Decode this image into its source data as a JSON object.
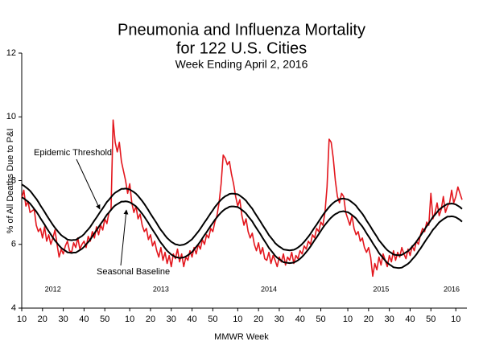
{
  "chart_data": {
    "type": "line",
    "title": [
      "Pneumonia and Influenza Mortality",
      "for 122 U.S. Cities"
    ],
    "subtitle": "Week Ending April 2, 2016",
    "y_label": "% of All Deaths Due to P&I",
    "x_label": "MMWR Week",
    "year_labels": [
      "2012",
      "2013",
      "2014",
      "2015",
      "2016"
    ],
    "ylim": [
      4,
      12
    ],
    "yticks": [
      4,
      6,
      8,
      10,
      12
    ],
    "grid": false,
    "categories": [
      "10",
      null,
      null,
      null,
      null,
      null,
      null,
      null,
      null,
      null,
      "20",
      null,
      null,
      null,
      null,
      null,
      null,
      null,
      null,
      null,
      "30",
      null,
      null,
      null,
      null,
      null,
      null,
      null,
      null,
      null,
      "40",
      null,
      null,
      null,
      null,
      null,
      null,
      null,
      null,
      null,
      "50",
      null,
      null,
      null,
      null,
      null,
      null,
      null,
      null,
      null,
      null,
      null,
      "10",
      null,
      null,
      null,
      null,
      null,
      null,
      null,
      null,
      null,
      "20",
      null,
      null,
      null,
      null,
      null,
      null,
      null,
      null,
      null,
      "30",
      null,
      null,
      null,
      null,
      null,
      null,
      null,
      null,
      null,
      "40",
      null,
      null,
      null,
      null,
      null,
      null,
      null,
      null,
      null,
      "50",
      null,
      null,
      null,
      null,
      null,
      null,
      null,
      null,
      null,
      null,
      null,
      "10",
      null,
      null,
      null,
      null,
      null,
      null,
      null,
      null,
      null,
      "20",
      null,
      null,
      null,
      null,
      null,
      null,
      null,
      null,
      null,
      "30",
      null,
      null,
      null,
      null,
      null,
      null,
      null,
      null,
      null,
      "40",
      null,
      null,
      null,
      null,
      null,
      null,
      null,
      null,
      null,
      "50",
      null,
      null,
      null,
      null,
      null,
      null,
      null,
      null,
      null,
      null,
      null,
      null,
      "10",
      null,
      null,
      null,
      null,
      null,
      null,
      null,
      null,
      null,
      "20",
      null,
      null,
      null,
      null,
      null,
      null,
      null,
      null,
      null,
      "30",
      null,
      null,
      null,
      null,
      null,
      null,
      null,
      null,
      null,
      "40",
      null,
      null,
      null,
      null,
      null,
      null,
      null,
      null,
      null,
      "50",
      null,
      null,
      null,
      null,
      null,
      null,
      null,
      null,
      null,
      null,
      null,
      "10",
      null,
      null,
      null
    ],
    "series": [
      {
        "color": "#e3161d",
        "values": [
          7.45,
          7.7,
          7.2,
          7.35,
          7.0,
          7.05,
          7.1,
          6.6,
          6.4,
          6.5,
          6.2,
          6.55,
          6.1,
          6.3,
          6.0,
          6.2,
          6.45,
          6.0,
          5.6,
          5.85,
          5.7,
          5.95,
          6.1,
          5.8,
          5.75,
          6.05,
          5.9,
          6.2,
          5.85,
          6.0,
          6.1,
          5.9,
          6.25,
          6.1,
          6.4,
          6.2,
          6.55,
          6.3,
          6.6,
          6.45,
          6.8,
          6.65,
          7.0,
          7.1,
          9.9,
          9.2,
          8.9,
          9.2,
          8.6,
          8.3,
          8.0,
          7.6,
          7.9,
          7.3,
          7.0,
          7.2,
          6.8,
          6.95,
          6.6,
          6.4,
          6.5,
          6.15,
          6.3,
          5.95,
          6.1,
          5.8,
          5.6,
          5.9,
          5.5,
          5.75,
          5.4,
          5.65,
          5.3,
          5.7,
          5.55,
          5.85,
          5.45,
          5.7,
          5.3,
          5.6,
          5.5,
          5.8,
          5.6,
          5.9,
          5.7,
          6.0,
          5.85,
          6.15,
          6.0,
          6.3,
          6.2,
          6.5,
          6.4,
          6.7,
          6.9,
          7.3,
          7.9,
          8.8,
          8.7,
          8.5,
          8.6,
          8.2,
          7.9,
          7.5,
          7.2,
          7.4,
          6.9,
          6.6,
          6.8,
          6.4,
          6.2,
          6.35,
          6.0,
          5.8,
          6.05,
          5.7,
          5.9,
          5.55,
          5.5,
          5.75,
          5.4,
          5.65,
          5.5,
          5.3,
          5.6,
          5.45,
          5.7,
          5.35,
          5.6,
          5.5,
          5.75,
          5.4,
          5.65,
          5.55,
          5.8,
          5.7,
          5.95,
          5.85,
          6.1,
          6.0,
          6.3,
          6.2,
          6.5,
          6.4,
          6.7,
          6.6,
          7.0,
          7.8,
          9.3,
          9.2,
          8.7,
          8.0,
          7.5,
          7.3,
          7.6,
          7.5,
          7.0,
          6.8,
          6.6,
          6.9,
          6.5,
          6.3,
          6.4,
          6.1,
          6.2,
          5.9,
          5.75,
          5.9,
          5.6,
          5.0,
          5.4,
          5.2,
          5.6,
          5.35,
          5.7,
          5.5,
          5.3,
          5.65,
          5.45,
          5.8,
          5.5,
          5.75,
          5.6,
          5.9,
          5.7,
          5.55,
          5.85,
          5.65,
          5.95,
          5.8,
          6.1,
          6.0,
          6.3,
          6.5,
          6.4,
          6.7,
          6.6,
          7.6,
          6.8,
          7.0,
          7.3,
          6.9,
          7.1,
          7.5,
          7.0,
          7.2,
          7.3,
          7.7,
          7.3,
          7.5,
          7.8,
          7.6,
          7.4
        ]
      },
      {
        "name": "Epidemic Threshold",
        "color": "#000000",
        "values": [
          7.88,
          7.84,
          7.79,
          7.74,
          7.68,
          7.6,
          7.51,
          7.43,
          7.33,
          7.22,
          7.12,
          7.02,
          6.91,
          6.81,
          6.71,
          6.61,
          6.52,
          6.44,
          6.36,
          6.29,
          6.24,
          6.2,
          6.15,
          6.14,
          6.13,
          6.14,
          6.14,
          6.18,
          6.22,
          6.26,
          6.32,
          6.4,
          6.47,
          6.55,
          6.65,
          6.75,
          6.84,
          6.94,
          7.04,
          7.13,
          7.23,
          7.33,
          7.4,
          7.48,
          7.56,
          7.62,
          7.66,
          7.7,
          7.74,
          7.74,
          7.75,
          7.74,
          7.72,
          7.68,
          7.64,
          7.59,
          7.52,
          7.44,
          7.36,
          7.27,
          7.17,
          7.07,
          6.96,
          6.86,
          6.76,
          6.66,
          6.55,
          6.45,
          6.37,
          6.28,
          6.2,
          6.14,
          6.08,
          6.04,
          6.0,
          5.99,
          5.97,
          5.98,
          5.99,
          6.02,
          6.06,
          6.11,
          6.16,
          6.24,
          6.32,
          6.4,
          6.49,
          6.59,
          6.69,
          6.78,
          6.88,
          6.98,
          7.07,
          7.17,
          7.25,
          7.33,
          7.4,
          7.46,
          7.51,
          7.54,
          7.58,
          7.59,
          7.59,
          7.58,
          7.57,
          7.53,
          7.48,
          7.43,
          7.37,
          7.28,
          7.2,
          7.12,
          7.01,
          6.91,
          6.81,
          6.71,
          6.6,
          6.5,
          6.4,
          6.29,
          6.21,
          6.13,
          6.04,
          5.98,
          5.93,
          5.89,
          5.84,
          5.83,
          5.82,
          5.81,
          5.82,
          5.83,
          5.86,
          5.9,
          5.95,
          6.01,
          6.08,
          6.16,
          6.24,
          6.33,
          6.43,
          6.53,
          6.62,
          6.72,
          6.82,
          6.92,
          7.01,
          7.09,
          7.17,
          7.24,
          7.3,
          7.35,
          7.38,
          7.42,
          7.43,
          7.44,
          7.42,
          7.41,
          7.37,
          7.32,
          7.27,
          7.21,
          7.12,
          7.04,
          6.96,
          6.86,
          6.75,
          6.65,
          6.55,
          6.44,
          6.34,
          6.24,
          6.13,
          6.05,
          5.97,
          5.89,
          5.82,
          5.77,
          5.73,
          5.68,
          5.67,
          5.66,
          5.66,
          5.67,
          5.71,
          5.75,
          5.79,
          5.85,
          5.93,
          6.0,
          6.08,
          6.18,
          6.27,
          6.37,
          6.47,
          6.57,
          6.66,
          6.76,
          6.86,
          6.93,
          7.01,
          7.09,
          7.14,
          7.19,
          7.23,
          7.27,
          7.27,
          7.28,
          7.27,
          7.25,
          7.21,
          7.17,
          7.11
        ]
      },
      {
        "name": "Seasonal Baseline",
        "color": "#000000",
        "values": [
          7.48,
          7.44,
          7.39,
          7.34,
          7.28,
          7.2,
          7.11,
          7.03,
          6.93,
          6.82,
          6.72,
          6.62,
          6.51,
          6.41,
          6.31,
          6.21,
          6.12,
          6.04,
          5.96,
          5.89,
          5.84,
          5.8,
          5.75,
          5.74,
          5.73,
          5.74,
          5.74,
          5.78,
          5.82,
          5.86,
          5.92,
          6.0,
          6.07,
          6.15,
          6.25,
          6.35,
          6.44,
          6.54,
          6.64,
          6.73,
          6.83,
          6.93,
          7.0,
          7.08,
          7.16,
          7.22,
          7.26,
          7.3,
          7.34,
          7.34,
          7.35,
          7.34,
          7.32,
          7.28,
          7.24,
          7.19,
          7.12,
          7.04,
          6.96,
          6.87,
          6.77,
          6.67,
          6.56,
          6.46,
          6.36,
          6.26,
          6.15,
          6.05,
          5.97,
          5.88,
          5.8,
          5.74,
          5.68,
          5.64,
          5.6,
          5.59,
          5.57,
          5.58,
          5.59,
          5.62,
          5.66,
          5.71,
          5.76,
          5.84,
          5.92,
          6.0,
          6.09,
          6.19,
          6.29,
          6.38,
          6.48,
          6.58,
          6.67,
          6.77,
          6.85,
          6.93,
          7.0,
          7.06,
          7.11,
          7.14,
          7.18,
          7.19,
          7.19,
          7.18,
          7.17,
          7.13,
          7.08,
          7.03,
          6.97,
          6.88,
          6.8,
          6.72,
          6.61,
          6.51,
          6.41,
          6.31,
          6.2,
          6.1,
          6.0,
          5.89,
          5.81,
          5.73,
          5.64,
          5.58,
          5.53,
          5.49,
          5.44,
          5.43,
          5.42,
          5.41,
          5.42,
          5.43,
          5.46,
          5.5,
          5.55,
          5.61,
          5.68,
          5.76,
          5.84,
          5.93,
          6.03,
          6.13,
          6.22,
          6.32,
          6.42,
          6.52,
          6.61,
          6.69,
          6.77,
          6.84,
          6.9,
          6.95,
          6.98,
          7.02,
          7.03,
          7.04,
          7.02,
          7.01,
          6.97,
          6.92,
          6.87,
          6.81,
          6.72,
          6.64,
          6.56,
          6.46,
          6.35,
          6.25,
          6.15,
          6.04,
          5.94,
          5.84,
          5.73,
          5.65,
          5.57,
          5.49,
          5.42,
          5.37,
          5.33,
          5.28,
          5.27,
          5.26,
          5.26,
          5.27,
          5.31,
          5.35,
          5.39,
          5.45,
          5.53,
          5.6,
          5.68,
          5.78,
          5.87,
          5.97,
          6.07,
          6.17,
          6.26,
          6.36,
          6.46,
          6.53,
          6.61,
          6.69,
          6.74,
          6.79,
          6.83,
          6.87,
          6.87,
          6.88,
          6.87,
          6.85,
          6.81,
          6.77,
          6.71
        ]
      }
    ]
  }
}
